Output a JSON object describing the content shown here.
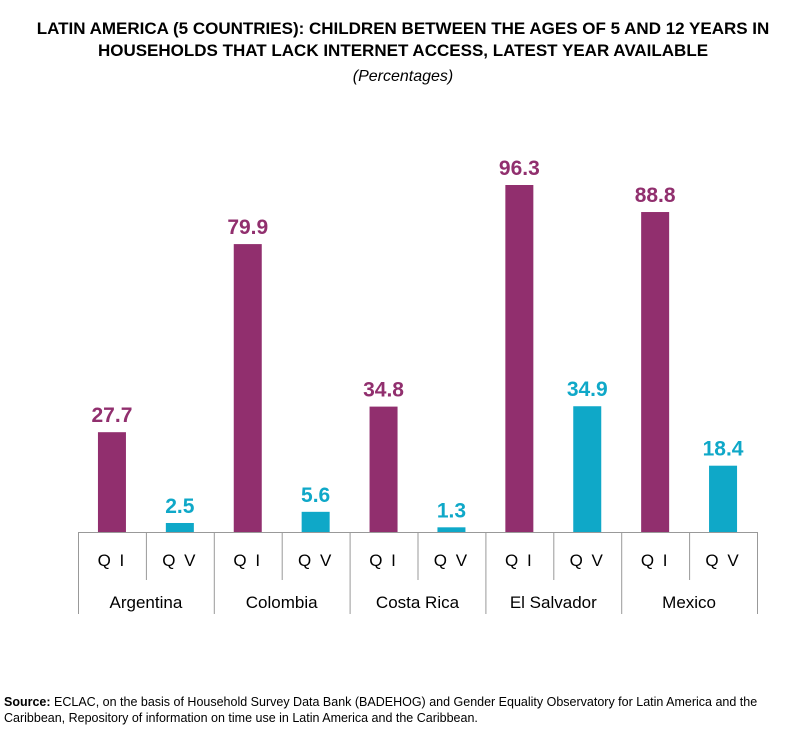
{
  "header": {
    "title_line1": "LATIN AMERICA (5 COUNTRIES): CHILDREN BETWEEN THE AGES OF 5 AND 12 YEARS IN",
    "title_line2": "HOUSEHOLDS THAT LACK INTERNET ACCESS, LATEST YEAR AVAILABLE",
    "subtitle": "(Percentages)"
  },
  "colors": {
    "qi": "#912f6e",
    "qv": "#0fa8c8",
    "axis": "#999999"
  },
  "chart_data": {
    "type": "bar",
    "title": "LATIN AMERICA (5 COUNTRIES): CHILDREN BETWEEN THE AGES OF 5 AND 12 YEARS IN HOUSEHOLDS THAT LACK INTERNET ACCESS, LATEST YEAR AVAILABLE",
    "subtitle": "(Percentages)",
    "categories": [
      "Argentina",
      "Colombia",
      "Costa Rica",
      "El Salvador",
      "Mexico"
    ],
    "series": [
      {
        "name": "Q I",
        "values": [
          27.7,
          79.9,
          34.8,
          96.3,
          88.8
        ]
      },
      {
        "name": "Q V",
        "values": [
          2.5,
          5.6,
          1.3,
          34.9,
          18.4
        ]
      }
    ],
    "ylim": [
      0,
      100
    ],
    "grid": false
  },
  "source": {
    "label": "Source:",
    "text": " ECLAC, on the basis of Household Survey Data Bank (BADEHOG) and Gender Equality Observatory for Latin America and the Caribbean, Repository of information on time use in Latin America and the Caribbean."
  }
}
